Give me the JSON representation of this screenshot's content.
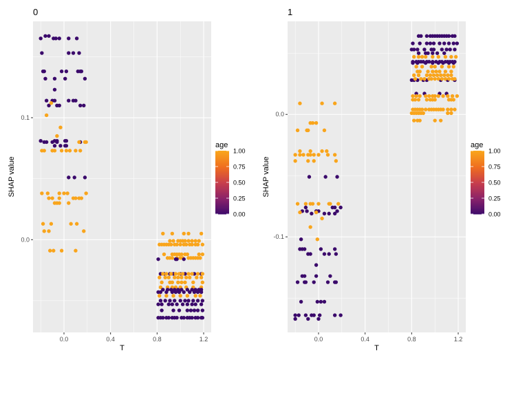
{
  "chart_data": [
    {
      "type": "scatter",
      "title": "0",
      "xlabel": "T",
      "ylabel": "SHAP value",
      "xlim": [
        -0.266,
        1.265
      ],
      "ylim": [
        -0.076,
        0.179
      ],
      "xticks": [
        {
          "v": 0,
          "label": "0.0"
        },
        {
          "v": 0.4,
          "label": "0.4"
        },
        {
          "v": 0.8,
          "label": "0.8"
        },
        {
          "v": 1.2,
          "label": "1.2"
        }
      ],
      "yticks": [
        {
          "v": 0.1,
          "label": "0.1"
        },
        {
          "v": 0,
          "label": "0.0"
        }
      ],
      "xminor": [
        -0.2,
        0.2,
        0.6,
        1.0
      ],
      "yminor": [
        0.15,
        0.05,
        -0.05
      ],
      "grid": true,
      "legend": {
        "title": "age",
        "position": "right",
        "ticks": [
          "1.00",
          "0.75",
          "0.50",
          "0.25",
          "0.00"
        ]
      },
      "rows": [
        {
          "y": 0.167,
          "age": 0,
          "x": [
            -0.16,
            -0.13
          ]
        },
        {
          "y": 0.165,
          "age": 0,
          "x": [
            -0.2,
            -0.09,
            -0.07,
            -0.04,
            0.04,
            0.11
          ]
        },
        {
          "y": 0.153,
          "age": 0,
          "x": [
            -0.19,
            0.04,
            0.08,
            0.13
          ]
        },
        {
          "y": 0.138,
          "age": 0,
          "x": [
            -0.18,
            -0.17,
            -0.02,
            0.02,
            0.12,
            0.14,
            0.15
          ]
        },
        {
          "y": 0.132,
          "age": 0,
          "x": [
            -0.16,
            -0.08,
            0.01,
            0.18
          ]
        },
        {
          "y": 0.123,
          "age": 0,
          "x": [
            -0.08
          ]
        },
        {
          "y": 0.114,
          "age": 0,
          "x": [
            -0.15,
            -0.1,
            -0.08,
            0.04,
            0.08,
            0.1
          ]
        },
        {
          "y": 0.11,
          "age": 0,
          "x": [
            -0.13,
            -0.06,
            -0.04,
            0.14,
            0.17
          ]
        },
        {
          "y": 0.112,
          "age": 1,
          "x": [
            -0.11
          ]
        },
        {
          "y": 0.102,
          "age": 1,
          "x": [
            -0.15
          ]
        },
        {
          "y": 0.092,
          "age": 1,
          "x": [
            -0.03
          ]
        },
        {
          "y": 0.085,
          "age": 1,
          "x": [
            -0.06
          ]
        },
        {
          "y": 0.081,
          "age": 0,
          "x": [
            -0.2,
            -0.08,
            -0.06,
            0.01,
            0.02
          ]
        },
        {
          "y": 0.08,
          "age": 0,
          "x": [
            -0.17,
            -0.15,
            -0.1,
            -0.06,
            0.14
          ]
        },
        {
          "y": 0.08,
          "age": 1,
          "x": [
            0.13,
            0.18,
            0.19
          ]
        },
        {
          "y": 0.077,
          "age": 0,
          "x": [
            -0.08,
            -0.03,
            0.01,
            0.02
          ]
        },
        {
          "y": 0.073,
          "age": 1,
          "x": [
            -0.19,
            -0.17,
            -0.1,
            -0.08,
            -0.02,
            0.02,
            0.05,
            0.1,
            0.14
          ]
        },
        {
          "y": 0.051,
          "age": 0,
          "x": [
            0.04,
            0.09,
            0.18
          ]
        },
        {
          "y": 0.038,
          "age": 1,
          "x": [
            -0.19,
            -0.14,
            -0.04,
            0.0,
            0.03,
            0.19
          ]
        },
        {
          "y": 0.034,
          "age": 1,
          "x": [
            -0.13,
            -0.1,
            -0.04,
            0.08,
            0.1,
            0.13,
            0.15
          ]
        },
        {
          "y": 0.03,
          "age": 1,
          "x": [
            -0.08,
            -0.06,
            -0.04,
            0.04
          ]
        },
        {
          "y": 0.013,
          "age": 1,
          "x": [
            -0.18,
            -0.11,
            0.06,
            0.11
          ]
        },
        {
          "y": 0.007,
          "age": 1,
          "x": [
            -0.17,
            -0.13,
            0.17
          ]
        },
        {
          "y": -0.009,
          "age": 1,
          "x": [
            -0.12,
            -0.09,
            -0.02,
            0.1
          ]
        },
        {
          "y": 0.005,
          "age": 1,
          "x": [
            0.85,
            0.93,
            1.03,
            1.07,
            1.18
          ]
        },
        {
          "y": -0.001,
          "age": 1,
          "x": [
            0.91,
            0.94,
            0.98,
            1.0,
            1.02,
            1.04,
            1.07,
            1.1,
            1.13,
            1.16
          ]
        },
        {
          "y": -0.004,
          "age": 1,
          "x": [
            0.82,
            0.84,
            0.86,
            0.88,
            0.9,
            0.92,
            0.95,
            0.97,
            1.0,
            1.03,
            1.05,
            1.08,
            1.1,
            1.13,
            1.15,
            1.19
          ]
        },
        {
          "y": -0.012,
          "age": 1,
          "x": [
            0.86,
            0.93,
            0.95,
            0.97,
            0.99,
            1.01,
            1.04,
            1.06,
            1.16,
            1.19
          ]
        },
        {
          "y": -0.015,
          "age": 1,
          "x": [
            0.89,
            0.91,
            0.93,
            0.97,
            1.0,
            1.02,
            1.07,
            1.09,
            1.11,
            1.13,
            1.15,
            1.17
          ]
        },
        {
          "y": -0.016,
          "age": 0,
          "x": [
            0.81,
            0.96,
            0.97,
            1.03
          ]
        },
        {
          "y": -0.028,
          "age": 0,
          "x": [
            0.83,
            0.86,
            0.91,
            0.94,
            1.0,
            1.04,
            1.12,
            1.18
          ]
        },
        {
          "y": -0.028,
          "age": 1,
          "x": [
            0.85,
            0.88,
            0.92,
            0.96,
            0.99,
            1.02,
            1.07,
            1.1,
            1.15,
            1.19
          ]
        },
        {
          "y": -0.031,
          "age": 1,
          "x": [
            0.82,
            0.87,
            0.9,
            0.95,
            0.98,
            1.01,
            1.05,
            1.08,
            1.14,
            1.18
          ]
        },
        {
          "y": -0.035,
          "age": 1,
          "x": [
            0.84,
            0.91,
            0.93,
            0.98,
            1.01,
            1.04,
            1.11,
            1.19
          ]
        },
        {
          "y": -0.039,
          "age": 1,
          "x": [
            0.83,
            0.89,
            0.93,
            0.96,
            1.0,
            1.05,
            1.11,
            1.18
          ]
        },
        {
          "y": -0.041,
          "age": 0,
          "x": [
            0.85,
            0.89,
            0.92,
            0.95,
            0.98,
            1.01,
            1.06,
            1.1,
            1.13,
            1.16,
            1.18
          ]
        },
        {
          "y": -0.043,
          "age": 0,
          "x": [
            0.81,
            0.83,
            0.88,
            0.93,
            0.96,
            0.99,
            1.03,
            1.08,
            1.12,
            1.15,
            1.18
          ]
        },
        {
          "y": -0.046,
          "age": 1,
          "x": [
            0.82,
            0.88,
            0.94,
            1.0,
            1.06,
            1.13,
            1.17
          ]
        },
        {
          "y": -0.05,
          "age": 0,
          "x": [
            0.83,
            0.87,
            0.91,
            0.95,
            1.0,
            1.04,
            1.07,
            1.11,
            1.15,
            1.19
          ]
        },
        {
          "y": -0.053,
          "age": 0,
          "x": [
            0.81,
            0.84,
            0.9,
            0.93,
            0.97,
            1.02,
            1.06,
            1.1,
            1.13,
            1.18
          ]
        },
        {
          "y": -0.058,
          "age": 0,
          "x": [
            0.84,
            0.94,
            0.99,
            1.06,
            1.09,
            1.12,
            1.15,
            1.19
          ]
        },
        {
          "y": -0.064,
          "age": 0,
          "x": [
            0.81,
            0.83,
            0.85,
            0.88,
            0.9,
            0.93,
            0.95,
            0.97,
            1.01,
            1.03,
            1.06,
            1.08,
            1.1,
            1.13,
            1.15,
            1.18,
            1.19
          ]
        }
      ]
    },
    {
      "type": "scatter",
      "title": "1",
      "xlabel": "T",
      "ylabel": "SHAP value",
      "xlim": [
        -0.266,
        1.265
      ],
      "ylim": [
        -0.178,
        0.076
      ],
      "xticks": [
        {
          "v": 0,
          "label": "0.0"
        },
        {
          "v": 0.4,
          "label": "0.4"
        },
        {
          "v": 0.8,
          "label": "0.8"
        },
        {
          "v": 1.2,
          "label": "1.2"
        }
      ],
      "yticks": [
        {
          "v": 0,
          "label": "0.0"
        },
        {
          "v": -0.1,
          "label": "-0.1"
        }
      ],
      "xminor": [
        -0.2,
        0.2,
        0.6,
        1.0
      ],
      "yminor": [
        0.05,
        -0.05,
        -0.15
      ],
      "grid": true,
      "legend": {
        "title": "age",
        "position": "right",
        "ticks": [
          "1.00",
          "0.75",
          "0.50",
          "0.25",
          "0.00"
        ]
      },
      "rows": [
        {
          "y": 0.009,
          "age": 1,
          "x": [
            -0.16,
            0.03,
            0.14
          ]
        },
        {
          "y": -0.007,
          "age": 1,
          "x": [
            -0.07,
            -0.05,
            -0.02
          ]
        },
        {
          "y": -0.013,
          "age": 1,
          "x": [
            -0.18,
            -0.1,
            -0.09,
            0.05
          ]
        },
        {
          "y": -0.03,
          "age": 1,
          "x": [
            -0.16,
            -0.07,
            0.03,
            0.07
          ]
        },
        {
          "y": -0.033,
          "age": 1,
          "x": [
            -0.2,
            -0.16,
            -0.13,
            -0.09,
            -0.07,
            -0.04,
            0.0,
            0.08,
            0.14
          ]
        },
        {
          "y": -0.038,
          "age": 1,
          "x": [
            -0.2,
            -0.09,
            -0.04,
            0.15
          ]
        },
        {
          "y": -0.051,
          "age": 0,
          "x": [
            -0.08,
            0.06,
            0.16
          ]
        },
        {
          "y": -0.073,
          "age": 1,
          "x": [
            -0.18,
            -0.11,
            -0.07,
            -0.05,
            0.0,
            0.09,
            0.1,
            0.17
          ]
        },
        {
          "y": -0.076,
          "age": 0,
          "x": [
            -0.11,
            0.12,
            0.14,
            0.19
          ]
        },
        {
          "y": -0.079,
          "age": 0,
          "x": [
            -0.14,
            -0.1,
            -0.02,
            0.0,
            0.16
          ]
        },
        {
          "y": -0.08,
          "age": 1,
          "x": [
            -0.16,
            -0.02
          ]
        },
        {
          "y": -0.081,
          "age": 0,
          "x": [
            -0.06,
            0.05,
            0.09,
            0.14
          ]
        },
        {
          "y": -0.085,
          "age": 1,
          "x": [
            0.03
          ]
        },
        {
          "y": -0.092,
          "age": 1,
          "x": [
            -0.07
          ]
        },
        {
          "y": -0.102,
          "age": 1,
          "x": [
            -0.01
          ]
        },
        {
          "y": -0.102,
          "age": 0,
          "x": [
            -0.15
          ]
        },
        {
          "y": -0.11,
          "age": 0,
          "x": [
            -0.16,
            -0.14,
            -0.12,
            0.02,
            0.14
          ]
        },
        {
          "y": -0.114,
          "age": 0,
          "x": [
            -0.09,
            -0.07,
            0.05,
            0.09,
            0.15
          ]
        },
        {
          "y": -0.123,
          "age": 0,
          "x": [
            -0.02
          ]
        },
        {
          "y": -0.132,
          "age": 0,
          "x": [
            -0.14,
            -0.12,
            -0.02,
            0.1
          ]
        },
        {
          "y": -0.137,
          "age": 0,
          "x": [
            -0.18,
            -0.12,
            -0.11,
            -0.04,
            0.08,
            0.14,
            0.15
          ]
        },
        {
          "y": -0.153,
          "age": 0,
          "x": [
            -0.15,
            -0.01,
            0.02,
            0.05
          ]
        },
        {
          "y": -0.164,
          "age": 0,
          "x": [
            -0.2,
            -0.17,
            -0.11,
            -0.06,
            -0.04,
            0.01,
            0.14,
            0.19
          ]
        },
        {
          "y": -0.167,
          "age": 0,
          "x": [
            -0.2,
            -0.09,
            0.0
          ]
        },
        {
          "y": 0.064,
          "age": 0,
          "x": [
            0.86,
            0.88,
            0.93,
            0.96,
            0.98,
            1.0,
            1.02,
            1.04,
            1.06,
            1.08,
            1.1,
            1.12,
            1.15,
            1.17
          ]
        },
        {
          "y": 0.058,
          "age": 0,
          "x": [
            0.81,
            0.87,
            0.93,
            0.96,
            0.99,
            1.04,
            1.08,
            1.12,
            1.16,
            1.19
          ]
        },
        {
          "y": 0.053,
          "age": 0,
          "x": [
            0.8,
            0.82,
            0.85,
            0.91,
            0.97,
            0.99,
            1.06,
            1.1,
            1.13,
            1.17
          ]
        },
        {
          "y": 0.05,
          "age": 0,
          "x": [
            0.86,
            0.92,
            0.94,
            0.98,
            1.02,
            1.08
          ]
        },
        {
          "y": 0.047,
          "age": 1,
          "x": [
            0.82,
            0.86,
            0.89,
            0.92,
            0.98,
            1.03,
            1.09,
            1.14,
            1.18
          ]
        },
        {
          "y": 0.043,
          "age": 0,
          "x": [
            0.81,
            0.84,
            0.86,
            0.88,
            0.9,
            0.93,
            0.95,
            0.98,
            1.01,
            1.04,
            1.06,
            1.09,
            1.11,
            1.13,
            1.15,
            1.17
          ]
        },
        {
          "y": 0.042,
          "age": 0,
          "x": [
            0.81,
            0.85,
            0.92,
            0.98,
            1.03,
            1.07,
            1.12,
            1.16
          ]
        },
        {
          "y": 0.039,
          "age": 1,
          "x": [
            0.84,
            0.89,
            0.97,
            1.0,
            1.06,
            1.12,
            1.16
          ]
        },
        {
          "y": 0.035,
          "age": 1,
          "x": [
            0.85,
            0.87,
            0.94,
            0.98,
            1.01,
            1.04,
            1.09,
            1.14
          ]
        },
        {
          "y": 0.032,
          "age": 1,
          "x": [
            0.82,
            0.86,
            0.93,
            0.96,
            0.99,
            1.02,
            1.05,
            1.08,
            1.11,
            1.14
          ]
        },
        {
          "y": 0.028,
          "age": 0,
          "x": [
            0.8,
            0.82,
            0.85,
            0.9,
            0.93,
            1.05,
            1.11,
            1.17
          ]
        },
        {
          "y": 0.029,
          "age": 1,
          "x": [
            0.83,
            0.88,
            0.91,
            0.95,
            0.97,
            1.0,
            1.03,
            1.06,
            1.09,
            1.12,
            1.15,
            1.17
          ]
        },
        {
          "y": 0.017,
          "age": 0,
          "x": [
            0.84,
            0.91,
            1.04,
            1.1
          ]
        },
        {
          "y": 0.015,
          "age": 1,
          "x": [
            0.81,
            0.84,
            0.87,
            0.92,
            0.95,
            0.98,
            1.0,
            1.03,
            1.07,
            1.11,
            1.15,
            1.19
          ]
        },
        {
          "y": 0.012,
          "age": 1,
          "x": [
            0.81,
            0.83,
            0.86,
            0.93,
            0.96,
            0.98,
            1.0,
            1.12,
            1.14,
            1.16
          ]
        },
        {
          "y": 0.004,
          "age": 1,
          "x": [
            0.81,
            0.83,
            0.85,
            0.87,
            0.89,
            0.92,
            0.95,
            0.97,
            0.99,
            1.01,
            1.03,
            1.05,
            1.07,
            1.11,
            1.14,
            1.17
          ]
        },
        {
          "y": 0.001,
          "age": 1,
          "x": [
            0.8,
            0.82,
            0.84,
            0.86,
            0.88,
            0.9,
            1.11,
            1.14
          ]
        },
        {
          "y": -0.005,
          "age": 1,
          "x": [
            0.82,
            0.85,
            0.87,
            1.0,
            1.05
          ]
        }
      ]
    }
  ],
  "colors": {
    "panel_bg": "#ebebeb",
    "grid": "#ffffff",
    "age_scale": [
      "#3b0a6b",
      "#8a226a",
      "#c73e4c",
      "#ef6d1f",
      "#f9a51c"
    ]
  }
}
